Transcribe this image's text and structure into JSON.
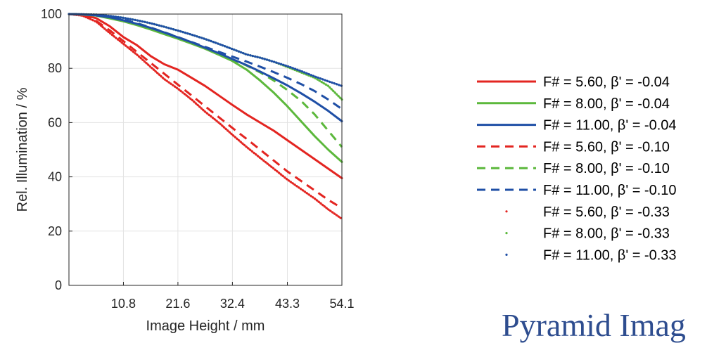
{
  "chart_data": {
    "type": "line",
    "xlabel": "Image Height / mm",
    "ylabel": "Rel. Illumination / %",
    "xlim": [
      0,
      54.1
    ],
    "ylim": [
      0,
      100
    ],
    "x_ticks": [
      "10.8",
      "21.6",
      "32.4",
      "43.3",
      "54.1"
    ],
    "x_tick_values": [
      10.8,
      21.6,
      32.4,
      43.3,
      54.1
    ],
    "y_ticks": [
      "0",
      "20",
      "40",
      "60",
      "80",
      "100"
    ],
    "y_tick_values": [
      0,
      20,
      40,
      60,
      80,
      100
    ],
    "grid": true,
    "legend_position": "right",
    "x": [
      0,
      2.7,
      5.4,
      8.1,
      10.8,
      13.5,
      16.2,
      18.9,
      21.6,
      24.3,
      27.0,
      29.7,
      32.4,
      35.2,
      37.9,
      40.6,
      43.3,
      46.0,
      48.7,
      51.4,
      54.1
    ],
    "series": [
      {
        "name": "F# = 5.60, β' = -0.04",
        "color": "#e32521",
        "style": "solid",
        "values": [
          100,
          99.6,
          98.5,
          95.5,
          91.5,
          88.5,
          84.5,
          81.5,
          79.5,
          76.5,
          73.5,
          70.0,
          66.5,
          63.0,
          60.0,
          57.0,
          53.5,
          50.0,
          46.5,
          43.0,
          39.5
        ]
      },
      {
        "name": "F# = 8.00, β' = -0.04",
        "color": "#5cb83c",
        "style": "solid",
        "values": [
          100,
          99.8,
          99.4,
          98.4,
          97.3,
          95.9,
          94.3,
          92.6,
          90.9,
          89.1,
          87.2,
          85.0,
          82.7,
          79.5,
          75.5,
          71.0,
          66.0,
          60.5,
          55.0,
          50.0,
          45.5
        ]
      },
      {
        "name": "F# = 11.00, β' = -0.04",
        "color": "#1f4fa6",
        "style": "solid",
        "values": [
          100,
          99.9,
          99.5,
          98.8,
          97.7,
          96.4,
          94.9,
          93.2,
          91.4,
          89.6,
          87.6,
          85.6,
          83.4,
          81.2,
          78.8,
          76.3,
          73.7,
          70.8,
          67.7,
          64.3,
          60.5
        ]
      },
      {
        "name": "F# = 5.60, β' = -0.10",
        "color": "#e32521",
        "style": "dashed",
        "values": [
          100,
          99.5,
          97.5,
          94.0,
          90.0,
          86.0,
          82.0,
          78.0,
          74.0,
          70.0,
          66.0,
          62.0,
          58.0,
          54.0,
          50.0,
          46.0,
          42.0,
          38.5,
          35.0,
          31.5,
          28.5
        ]
      },
      {
        "name": "F# = 8.00, β' = -0.10",
        "color": "#5cb83c",
        "style": "dashed",
        "values": [
          100,
          99.9,
          99.6,
          98.8,
          97.8,
          96.6,
          95.0,
          93.3,
          91.5,
          89.6,
          87.6,
          85.5,
          83.3,
          81.0,
          78.5,
          75.5,
          72.0,
          68.0,
          63.0,
          57.0,
          51.0
        ]
      },
      {
        "name": "F# = 11.00, β' = -0.10",
        "color": "#1f4fa6",
        "style": "dashed",
        "values": [
          100,
          99.9,
          99.7,
          99.1,
          98.0,
          96.6,
          95.0,
          93.3,
          91.5,
          89.7,
          87.9,
          86.1,
          84.3,
          82.5,
          80.6,
          78.6,
          76.5,
          74.2,
          71.6,
          68.5,
          65.0
        ]
      },
      {
        "name": "F# = 5.60, β' = -0.33",
        "color": "#e32521",
        "style": "dotted",
        "values": [
          100,
          99.4,
          97.2,
          93.0,
          89.0,
          85.0,
          80.5,
          76.0,
          72.5,
          68.5,
          64.0,
          60.0,
          55.5,
          51.0,
          47.0,
          43.0,
          39.0,
          35.5,
          32.0,
          28.0,
          24.5
        ]
      },
      {
        "name": "F# = 8.00, β' = -0.33",
        "color": "#5cb83c",
        "style": "dotted",
        "values": [
          100,
          99.9,
          99.8,
          99.3,
          98.6,
          97.7,
          96.6,
          95.3,
          93.9,
          92.4,
          90.8,
          89.0,
          87.1,
          85.1,
          83.9,
          82.4,
          80.5,
          78.5,
          76.5,
          73.5,
          68.5
        ]
      },
      {
        "name": "F# = 11.00, β' = -0.33",
        "color": "#1f4fa6",
        "style": "dotted",
        "values": [
          100,
          99.9,
          99.8,
          99.3,
          98.6,
          97.7,
          96.6,
          95.3,
          93.9,
          92.4,
          90.8,
          89.0,
          87.1,
          85.1,
          83.9,
          82.4,
          80.8,
          79.0,
          77.0,
          75.2,
          73.5
        ]
      }
    ]
  },
  "brand_text": "Pyramid Imag"
}
